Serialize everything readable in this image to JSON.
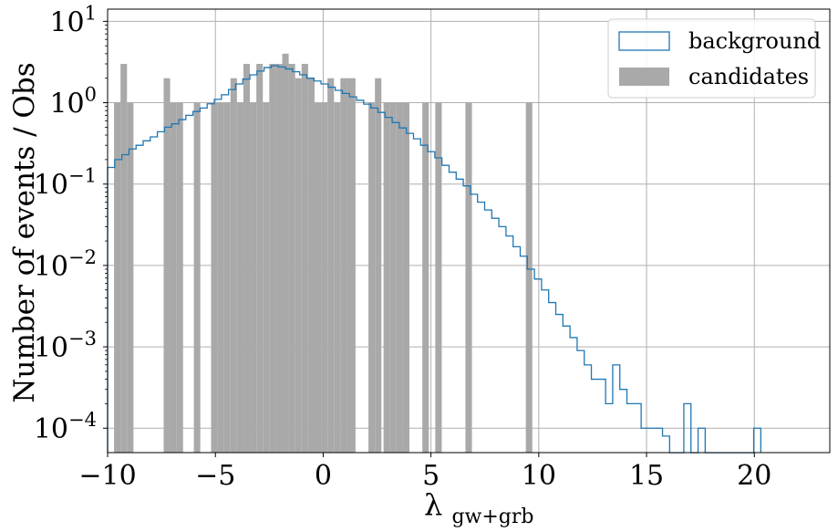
{
  "chart_data": {
    "type": "histogram",
    "xlabel_main": "λ",
    "xlabel_sub": "gw+grb",
    "ylabel": "Number of events / Obs",
    "x_ticks": [
      "−10",
      "−5",
      "0",
      "5",
      "10",
      "15",
      "20"
    ],
    "x_tick_values": [
      -10,
      -5,
      0,
      5,
      10,
      15,
      20
    ],
    "y_tick_exponents": [
      "1",
      "0",
      "−1",
      "−2",
      "−3",
      "−4"
    ],
    "y_tick_values": [
      1,
      0,
      -1,
      -2,
      -3,
      -4
    ],
    "xlim": [
      -10,
      23.5
    ],
    "ylim_log10": [
      -4.3,
      1.15
    ],
    "yscale": "log",
    "grid": true,
    "legend_position": "top-right",
    "legend": [
      {
        "label": "background",
        "style": "step-outline",
        "color": "#1f77b4"
      },
      {
        "label": "candidates",
        "style": "filled-bar",
        "color": "#a9a9a9"
      }
    ],
    "candidates": {
      "bin_width": 0.33,
      "bars": [
        {
          "x0": -9.7,
          "x1": -9.4,
          "y": 1
        },
        {
          "x0": -9.4,
          "x1": -9.1,
          "y": 3
        },
        {
          "x0": -9.1,
          "x1": -8.8,
          "y": 1
        },
        {
          "x0": -7.4,
          "x1": -7.1,
          "y": 2
        },
        {
          "x0": -7.1,
          "x1": -6.8,
          "y": 1
        },
        {
          "x0": -6.8,
          "x1": -6.5,
          "y": 1
        },
        {
          "x0": -6.0,
          "x1": -5.7,
          "y": 1
        },
        {
          "x0": -5.2,
          "x1": -4.9,
          "y": 1
        },
        {
          "x0": -4.9,
          "x1": -4.6,
          "y": 1
        },
        {
          "x0": -4.6,
          "x1": -4.3,
          "y": 1
        },
        {
          "x0": -4.3,
          "x1": -4.0,
          "y": 2
        },
        {
          "x0": -4.0,
          "x1": -3.7,
          "y": 1
        },
        {
          "x0": -3.7,
          "x1": -3.4,
          "y": 3
        },
        {
          "x0": -3.4,
          "x1": -3.1,
          "y": 1
        },
        {
          "x0": -3.1,
          "x1": -2.8,
          "y": 3
        },
        {
          "x0": -2.8,
          "x1": -2.5,
          "y": 1
        },
        {
          "x0": -2.5,
          "x1": -2.2,
          "y": 3
        },
        {
          "x0": -2.2,
          "x1": -1.9,
          "y": 3
        },
        {
          "x0": -1.9,
          "x1": -1.6,
          "y": 4
        },
        {
          "x0": -1.6,
          "x1": -1.3,
          "y": 3
        },
        {
          "x0": -1.3,
          "x1": -1.0,
          "y": 2
        },
        {
          "x0": -1.0,
          "x1": -0.7,
          "y": 3
        },
        {
          "x0": -0.7,
          "x1": -0.4,
          "y": 2
        },
        {
          "x0": -0.4,
          "x1": -0.1,
          "y": 1
        },
        {
          "x0": -0.1,
          "x1": 0.2,
          "y": 1
        },
        {
          "x0": 0.2,
          "x1": 0.5,
          "y": 2
        },
        {
          "x0": 0.5,
          "x1": 0.8,
          "y": 1
        },
        {
          "x0": 0.8,
          "x1": 1.1,
          "y": 2
        },
        {
          "x0": 1.1,
          "x1": 1.5,
          "y": 2
        },
        {
          "x0": 2.1,
          "x1": 2.4,
          "y": 1
        },
        {
          "x0": 2.4,
          "x1": 2.7,
          "y": 2
        },
        {
          "x0": 2.8,
          "x1": 3.1,
          "y": 1
        },
        {
          "x0": 3.1,
          "x1": 3.4,
          "y": 1
        },
        {
          "x0": 3.4,
          "x1": 3.7,
          "y": 1
        },
        {
          "x0": 3.7,
          "x1": 4.0,
          "y": 1
        },
        {
          "x0": 4.6,
          "x1": 4.9,
          "y": 1
        },
        {
          "x0": 5.2,
          "x1": 5.5,
          "y": 1
        },
        {
          "x0": 6.6,
          "x1": 6.9,
          "y": 1
        },
        {
          "x0": 9.4,
          "x1": 9.7,
          "y": 1
        }
      ]
    },
    "background": {
      "bin_width": 0.33,
      "edges": [
        -10.0,
        -9.67,
        -9.34,
        -9.01,
        -8.68,
        -8.35,
        -8.02,
        -7.69,
        -7.36,
        -7.03,
        -6.7,
        -6.37,
        -6.04,
        -5.71,
        -5.38,
        -5.05,
        -4.72,
        -4.39,
        -4.06,
        -3.73,
        -3.4,
        -3.07,
        -2.74,
        -2.41,
        -2.08,
        -1.75,
        -1.42,
        -1.09,
        -0.76,
        -0.43,
        -0.1,
        0.23,
        0.56,
        0.89,
        1.22,
        1.55,
        1.88,
        2.21,
        2.54,
        2.87,
        3.2,
        3.53,
        3.86,
        4.19,
        4.52,
        4.85,
        5.18,
        5.51,
        5.84,
        6.17,
        6.5,
        6.83,
        7.16,
        7.49,
        7.82,
        8.15,
        8.48,
        8.81,
        9.14,
        9.47,
        9.8,
        10.13,
        10.46,
        10.79,
        11.12,
        11.45,
        11.78,
        12.11,
        12.44,
        12.77,
        13.1,
        13.43,
        13.76,
        14.09,
        14.42,
        14.75,
        15.08,
        15.41,
        15.74,
        16.07,
        16.4,
        16.73,
        17.06,
        17.39,
        17.72,
        18.05,
        19.97,
        20.3
      ],
      "values": [
        0.16,
        0.2,
        0.23,
        0.27,
        0.3,
        0.34,
        0.38,
        0.44,
        0.5,
        0.55,
        0.62,
        0.7,
        0.78,
        0.86,
        0.97,
        1.1,
        1.25,
        1.45,
        1.7,
        1.95,
        2.2,
        2.45,
        2.7,
        2.85,
        2.75,
        2.6,
        2.4,
        2.2,
        2.0,
        1.85,
        1.7,
        1.55,
        1.42,
        1.3,
        1.18,
        1.07,
        0.96,
        0.86,
        0.76,
        0.66,
        0.57,
        0.49,
        0.42,
        0.36,
        0.3,
        0.25,
        0.21,
        0.17,
        0.14,
        0.115,
        0.095,
        0.075,
        0.06,
        0.048,
        0.038,
        0.03,
        0.023,
        0.017,
        0.013,
        0.009,
        0.0068,
        0.005,
        0.0035,
        0.0025,
        0.0018,
        0.0013,
        0.0009,
        0.0006,
        0.0004,
        0.0004,
        0.0002,
        0.0006,
        0.0003,
        0.0002,
        0.0002,
        0.0001,
        0.0001,
        0.0001,
        8e-05,
        5e-05,
        5e-05,
        0.0002,
        5e-05,
        0.0001,
        5e-05,
        5e-05,
        0.0001
      ]
    }
  }
}
